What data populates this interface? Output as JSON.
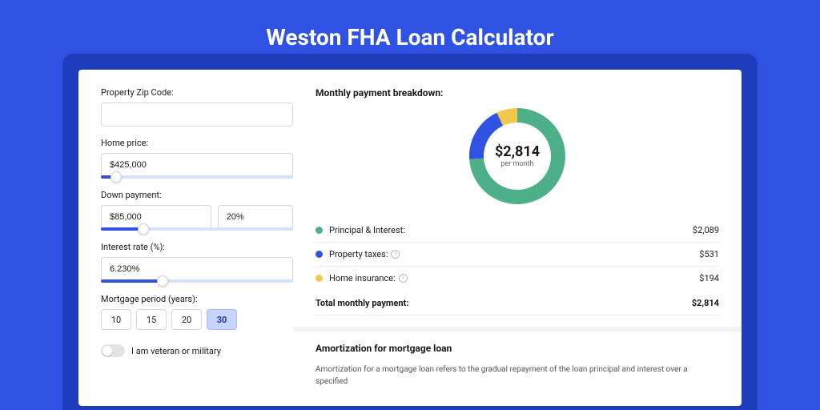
{
  "page": {
    "title": "Weston FHA Loan Calculator"
  },
  "form": {
    "zip": {
      "label": "Property Zip Code:",
      "value": ""
    },
    "price": {
      "label": "Home price:",
      "value": "$425,000",
      "slider_pct": 8
    },
    "down": {
      "label": "Down payment:",
      "value": "$85,000",
      "pct_value": "20%",
      "slider_pct": 22
    },
    "rate": {
      "label": "Interest rate (%):",
      "value": "6.230%",
      "slider_pct": 32
    },
    "period": {
      "label": "Mortgage period (years):",
      "options": [
        "10",
        "15",
        "20",
        "30"
      ],
      "active_index": 3
    },
    "veteran": {
      "label": "I am veteran or military",
      "on": false
    }
  },
  "breakdown": {
    "heading": "Monthly payment breakdown:",
    "center_amount": "$2,814",
    "center_sub": "per month",
    "items": [
      {
        "label": "Principal & Interest:",
        "value": "$2,089",
        "color": "#4db088",
        "pct": 74,
        "info": false
      },
      {
        "label": "Property taxes:",
        "value": "$531",
        "color": "#3052e3",
        "pct": 19,
        "info": true
      },
      {
        "label": "Home insurance:",
        "value": "$194",
        "color": "#f2c84c",
        "pct": 7,
        "info": true
      }
    ],
    "total_label": "Total monthly payment:",
    "total_value": "$2,814"
  },
  "amort": {
    "heading": "Amortization for mortgage loan",
    "text": "Amortization for a mortgage loan refers to the gradual repayment of the loan principal and interest over a specified"
  },
  "donut": {
    "size": 120,
    "stroke": 18,
    "bg": "#ffffff"
  }
}
